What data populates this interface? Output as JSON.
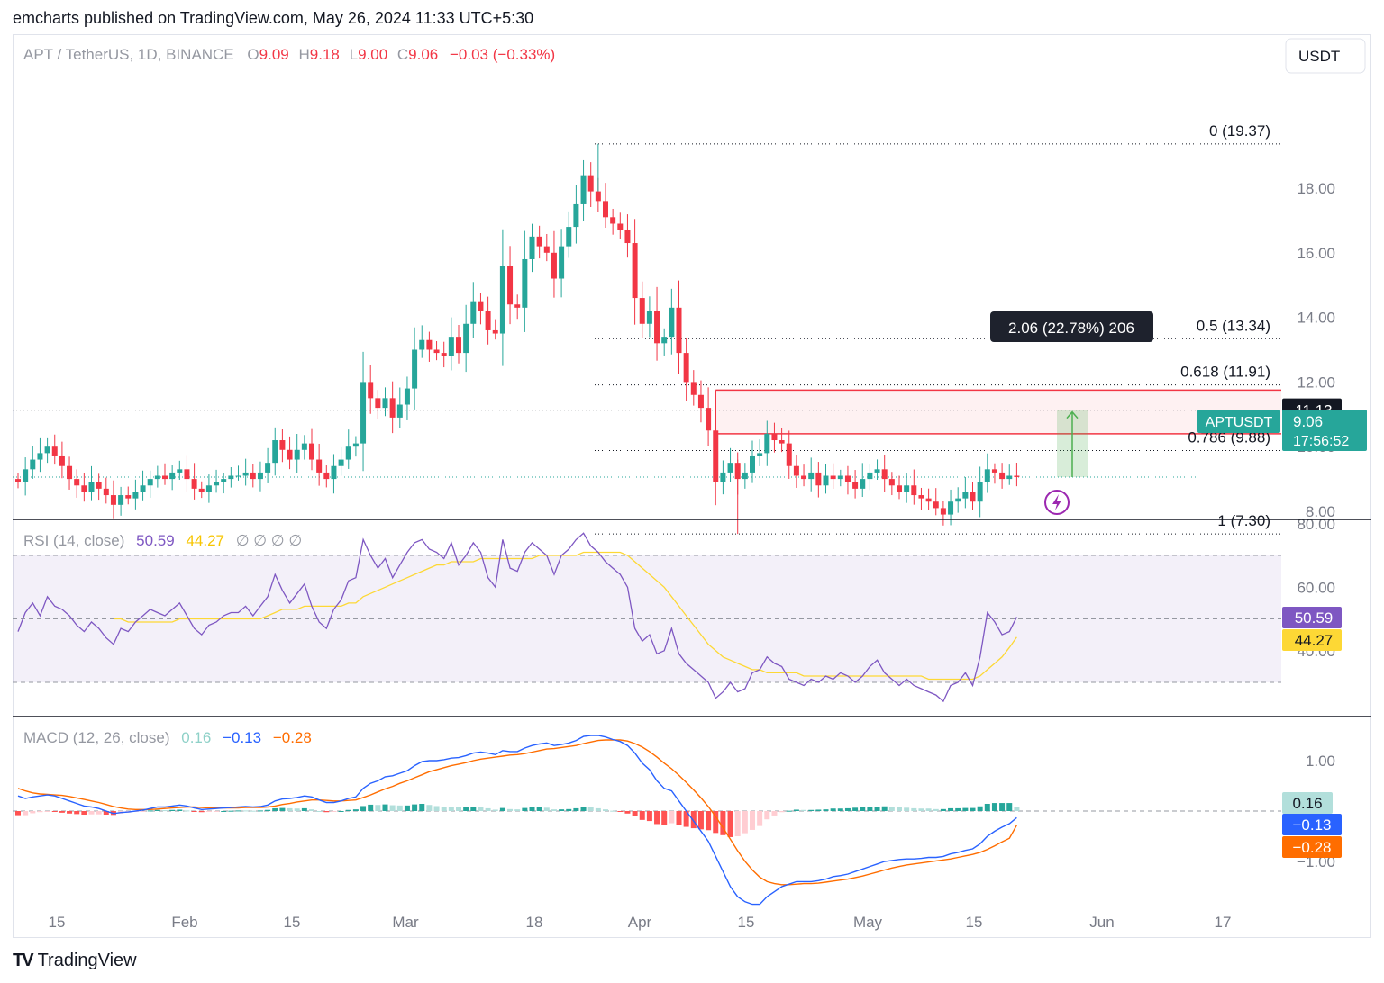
{
  "publisher": "emcharts published on TradingView.com, May 26, 2024 11:33 UTC+5:30",
  "brand": {
    "icon": "TV",
    "name": "TradingView"
  },
  "currency": "USDT",
  "colors": {
    "up": "#26a69a",
    "down": "#f23645",
    "rsi": "#7e57c2",
    "rsi_ma": "#fdd835",
    "macd": "#2962ff",
    "signal": "#ff6d00",
    "fib": "#131722",
    "zone": "#f23645",
    "measure": "#4caf50"
  },
  "legend": {
    "symbol": "APT / TetherUS, 1D, BINANCE",
    "o_label": "O",
    "o": "9.09",
    "h_label": "H",
    "h": "9.18",
    "l_label": "L",
    "l": "9.00",
    "c_label": "C",
    "c": "9.06",
    "chg": "−0.03 (−0.33%)"
  },
  "price_axis": [
    "18.00",
    "16.00",
    "14.00",
    "12.00",
    "10.00",
    "8.00"
  ],
  "fib_labels": [
    "0 (19.37)",
    "0.5 (13.34)",
    "0.618 (11.91)",
    "0.786 (9.88)",
    "1 (7.30)"
  ],
  "measure_label": "2.06 (22.78%) 206",
  "price_tags": {
    "crosshair": "11.13",
    "symbol": "APTUSDT",
    "last": "9.06",
    "countdown": "17:56:52"
  },
  "rsi": {
    "title": "RSI (14, close)",
    "value": "50.59",
    "ma": "44.27",
    "extras": "∅ ∅ ∅ ∅",
    "axis": [
      "80.00",
      "60.00",
      "40.00"
    ],
    "tag_rsi": "50.59",
    "tag_ma": "44.27"
  },
  "macd": {
    "title": "MACD (12, 26, close)",
    "hist": "0.16",
    "macd": "−0.13",
    "signal": "−0.28",
    "axis": [
      "1.00",
      "−1.00"
    ],
    "tag_hist": "0.16",
    "tag_macd": "−0.13",
    "tag_signal": "−0.28"
  },
  "time_axis": [
    "15",
    "Feb",
    "15",
    "Mar",
    "18",
    "Apr",
    "15",
    "May",
    "15",
    "Jun",
    "17"
  ],
  "chart_data": [
    {
      "type": "candlestick",
      "title": "APT / TetherUS, 1D, BINANCE",
      "x": "daily bars, Jan 2024 to May 26 2024",
      "ylim": [
        7.0,
        19.5
      ],
      "fib_levels": {
        "0": 19.37,
        "0.5": 13.34,
        "0.618": 11.91,
        "0.786": 9.88,
        "1": 7.3
      },
      "close": [
        8.9,
        9.3,
        9.6,
        9.8,
        10.0,
        9.7,
        9.4,
        9.0,
        8.8,
        8.6,
        8.9,
        8.7,
        8.5,
        8.2,
        8.5,
        8.4,
        8.6,
        8.8,
        9.0,
        9.1,
        9.0,
        9.2,
        9.3,
        9.0,
        8.7,
        8.6,
        8.8,
        8.9,
        9.0,
        9.1,
        9.1,
        9.2,
        9.0,
        9.2,
        9.5,
        10.2,
        9.9,
        9.6,
        9.9,
        10.1,
        9.6,
        9.2,
        9.0,
        9.4,
        9.6,
        10.0,
        10.1,
        12.0,
        11.5,
        11.2,
        11.5,
        10.9,
        11.3,
        11.8,
        13.0,
        13.3,
        13.0,
        12.9,
        12.8,
        13.4,
        12.9,
        13.8,
        14.5,
        14.2,
        13.6,
        13.5,
        15.6,
        14.4,
        14.3,
        15.8,
        16.5,
        16.2,
        16.0,
        15.2,
        16.2,
        16.8,
        17.5,
        18.4,
        17.9,
        17.6,
        17.1,
        16.9,
        16.7,
        16.3,
        14.6,
        13.8,
        14.2,
        13.2,
        13.4,
        14.3,
        12.9,
        12.0,
        11.6,
        11.2,
        10.5,
        8.9,
        9.2,
        9.5,
        9.0,
        9.2,
        9.7,
        9.8,
        10.4,
        10.2,
        10.1,
        9.4,
        9.1,
        9.0,
        9.2,
        8.8,
        9.1,
        9.0,
        9.1,
        8.9,
        8.7,
        9.0,
        9.2,
        9.3,
        9.0,
        8.8,
        8.6,
        8.8,
        8.5,
        8.4,
        8.3,
        8.1,
        7.9,
        8.3,
        8.4,
        8.6,
        8.3,
        8.9,
        9.3,
        9.2,
        9.0,
        9.1,
        9.06
      ]
    },
    {
      "type": "line",
      "title": "RSI (14, close)",
      "ylim": [
        20,
        85
      ],
      "bands": [
        70,
        50,
        30
      ],
      "series": [
        {
          "name": "RSI",
          "values": [
            46,
            52,
            55,
            51,
            57,
            54,
            53,
            51,
            48,
            46,
            49,
            47,
            44,
            42,
            47,
            46,
            49,
            51,
            53,
            52,
            51,
            53,
            55,
            51,
            47,
            45,
            48,
            49,
            51,
            52,
            52,
            54,
            51,
            54,
            57,
            64,
            59,
            55,
            58,
            61,
            54,
            49,
            47,
            53,
            56,
            62,
            63,
            75,
            70,
            66,
            69,
            63,
            67,
            71,
            74,
            75,
            72,
            71,
            69,
            74,
            67,
            70,
            74,
            71,
            63,
            60,
            75,
            66,
            65,
            71,
            74,
            72,
            70,
            64,
            70,
            72,
            75,
            77,
            73,
            71,
            68,
            66,
            64,
            60,
            47,
            43,
            45,
            39,
            40,
            47,
            39,
            36,
            34,
            32,
            30,
            25,
            27,
            30,
            27,
            28,
            33,
            34,
            38,
            36,
            35,
            31,
            30,
            29,
            31,
            30,
            32,
            31,
            33,
            32,
            30,
            32,
            35,
            37,
            33,
            31,
            29,
            31,
            29,
            28,
            27,
            26,
            24,
            29,
            30,
            33,
            29,
            38,
            52,
            49,
            45,
            46,
            50.59
          ]
        },
        {
          "name": "RSI-based MA",
          "values": [
            null,
            null,
            null,
            null,
            null,
            null,
            null,
            null,
            null,
            null,
            null,
            null,
            null,
            50,
            50,
            49,
            49,
            49,
            49,
            49,
            49,
            49,
            50,
            50,
            50,
            50,
            50,
            50,
            50,
            50,
            50,
            50,
            50,
            50,
            51,
            52,
            53,
            53,
            53,
            54,
            54,
            54,
            54,
            54,
            54,
            55,
            55,
            57,
            58,
            59,
            60,
            61,
            62,
            63,
            64,
            65,
            66,
            67,
            67,
            68,
            68,
            68,
            68,
            69,
            69,
            69,
            69,
            69,
            69,
            69,
            69,
            70,
            70,
            70,
            70,
            70,
            70,
            71,
            71,
            71,
            71,
            71,
            71,
            70,
            68,
            66,
            64,
            62,
            60,
            57,
            54,
            51,
            48,
            45,
            42,
            40,
            38,
            37,
            36,
            35,
            34,
            34,
            33,
            33,
            33,
            33,
            33,
            32,
            32,
            32,
            32,
            32,
            32,
            32,
            32,
            32,
            32,
            32,
            32,
            32,
            32,
            32,
            32,
            32,
            31,
            31,
            31,
            31,
            31,
            31,
            31,
            32,
            34,
            36,
            38,
            41,
            44.27
          ]
        }
      ]
    },
    {
      "type": "line",
      "title": "MACD (12, 26, close)",
      "ylim": [
        -2.3,
        1.9
      ],
      "series": [
        {
          "name": "MACD",
          "values": [
            0.3,
            0.25,
            0.28,
            0.3,
            0.32,
            0.3,
            0.25,
            0.2,
            0.15,
            0.1,
            0.08,
            0.05,
            0.0,
            -0.05,
            -0.03,
            -0.02,
            0.0,
            0.02,
            0.05,
            0.08,
            0.08,
            0.1,
            0.12,
            0.1,
            0.06,
            0.03,
            0.04,
            0.05,
            0.06,
            0.07,
            0.08,
            0.09,
            0.08,
            0.09,
            0.12,
            0.2,
            0.24,
            0.25,
            0.27,
            0.3,
            0.28,
            0.22,
            0.17,
            0.17,
            0.2,
            0.25,
            0.28,
            0.45,
            0.55,
            0.6,
            0.68,
            0.7,
            0.75,
            0.8,
            0.9,
            0.98,
            1.0,
            1.0,
            1.02,
            1.05,
            1.06,
            1.1,
            1.15,
            1.17,
            1.15,
            1.12,
            1.2,
            1.18,
            1.18,
            1.25,
            1.3,
            1.33,
            1.35,
            1.3,
            1.32,
            1.35,
            1.4,
            1.48,
            1.5,
            1.5,
            1.47,
            1.42,
            1.38,
            1.3,
            1.15,
            0.95,
            0.82,
            0.6,
            0.45,
            0.4,
            0.2,
            0.0,
            -0.2,
            -0.4,
            -0.6,
            -0.9,
            -1.2,
            -1.5,
            -1.7,
            -1.8,
            -1.85,
            -1.85,
            -1.7,
            -1.6,
            -1.5,
            -1.45,
            -1.4,
            -1.4,
            -1.4,
            -1.38,
            -1.35,
            -1.3,
            -1.28,
            -1.25,
            -1.2,
            -1.15,
            -1.1,
            -1.05,
            -1.0,
            -0.98,
            -0.96,
            -0.95,
            -0.95,
            -0.94,
            -0.92,
            -0.92,
            -0.9,
            -0.85,
            -0.82,
            -0.78,
            -0.75,
            -0.65,
            -0.5,
            -0.4,
            -0.32,
            -0.25,
            -0.13
          ]
        },
        {
          "name": "Signal",
          "values": [
            0.45,
            0.4,
            0.36,
            0.34,
            0.33,
            0.32,
            0.31,
            0.29,
            0.26,
            0.23,
            0.2,
            0.17,
            0.13,
            0.09,
            0.06,
            0.04,
            0.03,
            0.03,
            0.03,
            0.04,
            0.05,
            0.06,
            0.07,
            0.08,
            0.08,
            0.07,
            0.06,
            0.06,
            0.06,
            0.06,
            0.06,
            0.07,
            0.07,
            0.07,
            0.08,
            0.1,
            0.13,
            0.15,
            0.18,
            0.2,
            0.22,
            0.22,
            0.21,
            0.2,
            0.2,
            0.21,
            0.22,
            0.27,
            0.32,
            0.38,
            0.44,
            0.49,
            0.55,
            0.6,
            0.66,
            0.72,
            0.78,
            0.82,
            0.86,
            0.9,
            0.93,
            0.96,
            1.0,
            1.03,
            1.05,
            1.07,
            1.09,
            1.11,
            1.12,
            1.14,
            1.17,
            1.2,
            1.23,
            1.24,
            1.26,
            1.28,
            1.3,
            1.34,
            1.37,
            1.4,
            1.41,
            1.41,
            1.41,
            1.39,
            1.34,
            1.27,
            1.18,
            1.07,
            0.95,
            0.84,
            0.71,
            0.57,
            0.42,
            0.26,
            0.09,
            -0.11,
            -0.33,
            -0.56,
            -0.79,
            -1.0,
            -1.17,
            -1.31,
            -1.4,
            -1.44,
            -1.46,
            -1.46,
            -1.45,
            -1.44,
            -1.44,
            -1.43,
            -1.41,
            -1.39,
            -1.37,
            -1.35,
            -1.32,
            -1.29,
            -1.25,
            -1.21,
            -1.17,
            -1.13,
            -1.1,
            -1.07,
            -1.05,
            -1.03,
            -1.01,
            -0.99,
            -0.97,
            -0.95,
            -0.92,
            -0.89,
            -0.86,
            -0.82,
            -0.76,
            -0.69,
            -0.61,
            -0.54,
            -0.28
          ]
        }
      ]
    }
  ]
}
